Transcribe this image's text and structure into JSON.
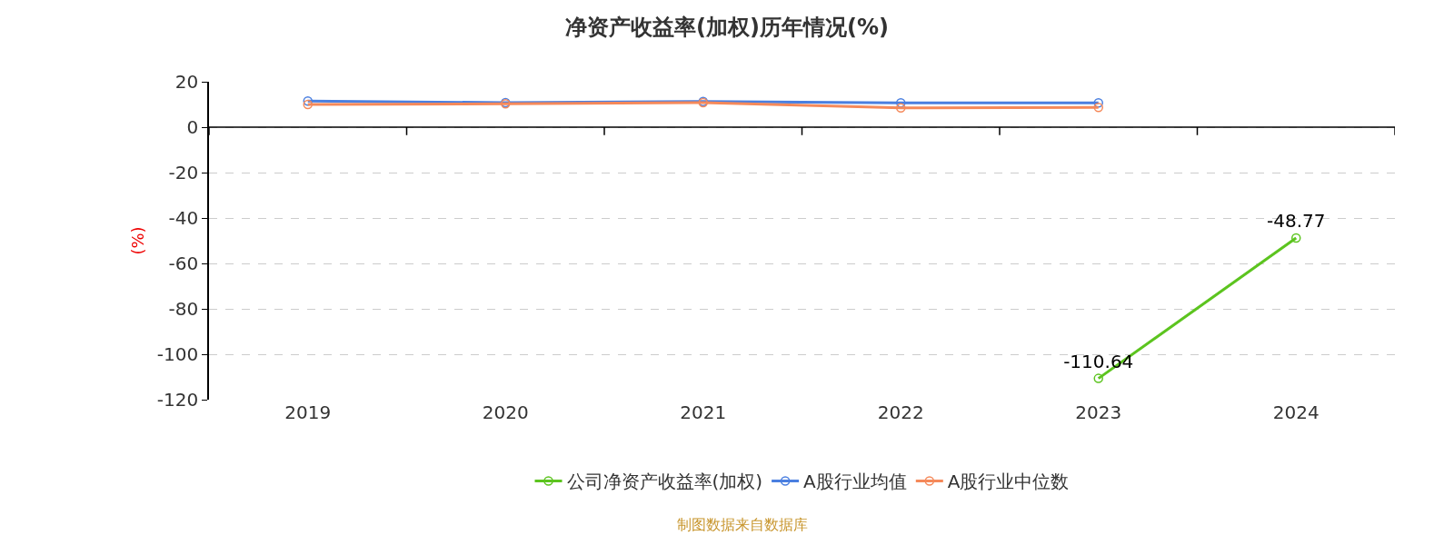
{
  "chart_data": {
    "type": "line",
    "title": "净资产收益率(加权)历年情况(%)",
    "ylabel": "(%)",
    "categories": [
      "2019",
      "2020",
      "2021",
      "2022",
      "2023",
      "2024"
    ],
    "series": [
      {
        "name": "公司净资产收益率(加权)",
        "color": "#5cc41f",
        "values": [
          null,
          null,
          null,
          null,
          -110.64,
          -48.77
        ],
        "value_labels": [
          null,
          null,
          null,
          null,
          "-110.64",
          "-48.77"
        ]
      },
      {
        "name": "A股行业均值",
        "color": "#4a7fe0",
        "values": [
          11.5,
          10.8,
          11.3,
          10.7,
          10.7,
          null
        ]
      },
      {
        "name": "A股行业中位数",
        "color": "#f5895a",
        "values": [
          10.0,
          10.3,
          10.8,
          8.5,
          8.7,
          null
        ]
      }
    ],
    "ylim": [
      -120,
      20
    ],
    "yticks": [
      -120,
      -100,
      -80,
      -60,
      -40,
      -20,
      0,
      20
    ],
    "grid": "y",
    "legend": "bottom",
    "marker": "circle",
    "line_style": "solid",
    "annotations": [
      "制图数据来自数据库"
    ]
  }
}
